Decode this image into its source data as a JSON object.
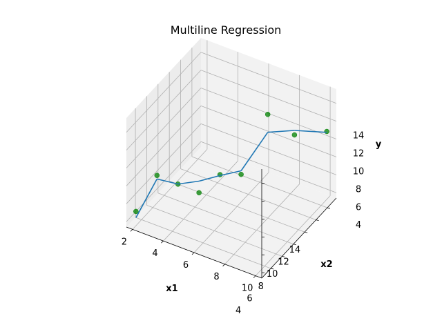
{
  "chart_data": {
    "type": "scatter",
    "projection": "3d",
    "title": "Multiline Regression",
    "xlabel": "x1",
    "ylabel": "x2",
    "zlabel": "y",
    "xlim": [
      1.6,
      10.4
    ],
    "ylim": [
      2.4,
      15.6
    ],
    "zlim": [
      3.4,
      15.6
    ],
    "xticks": [
      2,
      4,
      6,
      8,
      10
    ],
    "yticks": [
      4,
      6,
      8,
      10,
      12,
      14
    ],
    "zticks": [
      4,
      6,
      8,
      10,
      12,
      14
    ],
    "grid": true,
    "series": [
      {
        "kind": "points",
        "color": "#008000",
        "x": [
          2,
          3,
          4,
          5,
          6,
          7,
          8,
          9,
          10
        ],
        "y": [
          3,
          4,
          5,
          6,
          7,
          8,
          10,
          12,
          15
        ],
        "z": [
          5,
          9,
          8,
          7,
          9,
          9,
          15,
          12,
          11
        ]
      },
      {
        "kind": "line",
        "color": "#1f77b4",
        "x": [
          2,
          3,
          4,
          5,
          6,
          7,
          8,
          9,
          10
        ],
        "y": [
          3,
          4,
          5,
          6,
          7,
          8,
          10,
          12,
          15
        ],
        "z": [
          4.3,
          8.6,
          8.0,
          8.3,
          8.9,
          9.4,
          13.0,
          12.5,
          10.9
        ]
      }
    ]
  }
}
